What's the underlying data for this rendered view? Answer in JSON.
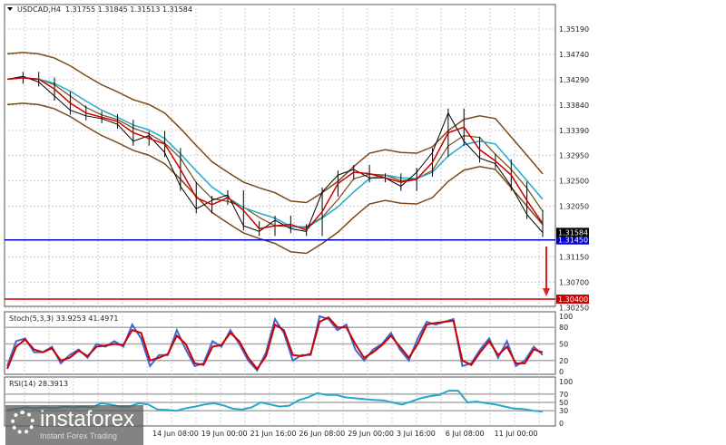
{
  "header": {
    "symbol": "USDCAD,H4",
    "ohlc": "1.31755 1.31845 1.31513 1.31584"
  },
  "chart_data": [
    {
      "type": "line",
      "name": "price",
      "title": "USDCAD,H4",
      "y_ticks": [
        "1.35190",
        "1.34740",
        "1.34290",
        "1.33840",
        "1.33390",
        "1.32950",
        "1.32500",
        "1.32050",
        "1.31150",
        "1.30700",
        "1.30250"
      ],
      "ylim": [
        1.3025,
        1.3545
      ],
      "x_ticks": [
        "14 Jun 08:00",
        "19 Jun 00:00",
        "21 Jun 16:00",
        "26 Jun 08:00",
        "29 Jun 00:00",
        "3 Jul 16:00",
        "6 Jul 08:00",
        "11 Jul 00:00"
      ],
      "close": [
        1.343,
        1.3435,
        1.3425,
        1.34,
        1.3375,
        1.3365,
        1.336,
        1.335,
        1.332,
        1.333,
        1.33,
        1.324,
        1.32,
        1.3215,
        1.3225,
        1.317,
        1.316,
        1.318,
        1.3165,
        1.316,
        1.323,
        1.326,
        1.327,
        1.3255,
        1.3255,
        1.324,
        1.3265,
        1.33,
        1.337,
        1.332,
        1.329,
        1.328,
        1.324,
        1.319,
        1.3158
      ],
      "current_price": {
        "label": "1.31584",
        "value": 1.31584,
        "color": "#000000"
      },
      "levels": [
        {
          "label": "1.31450",
          "value": 1.3145,
          "color": "#0000cc"
        },
        {
          "label": "1.30400",
          "value": 1.304,
          "color": "#cc0000"
        }
      ],
      "colors": {
        "price": "#000000",
        "fast_ma": "#cc0000",
        "slow_ma": "#22aacc",
        "bands": "#7a4a1a",
        "arrow": "#e02020"
      }
    },
    {
      "type": "line",
      "name": "stochastic",
      "title": "Stoch(5,3,3) 33.9253 41.4971",
      "y_ticks": [
        "100",
        "80",
        "50",
        "20",
        "0"
      ],
      "ylim": [
        0,
        100
      ],
      "main": [
        10,
        55,
        60,
        35,
        35,
        45,
        15,
        30,
        40,
        25,
        50,
        45,
        55,
        45,
        85,
        60,
        10,
        30,
        30,
        75,
        40,
        10,
        15,
        55,
        45,
        75,
        50,
        20,
        2,
        35,
        95,
        70,
        20,
        30,
        30,
        100,
        95,
        75,
        85,
        40,
        20,
        40,
        50,
        70,
        40,
        20,
        60,
        90,
        85,
        90,
        95,
        10,
        15,
        40,
        60,
        25,
        55,
        10,
        20,
        45,
        30
      ],
      "signal": [
        5,
        45,
        58,
        40,
        35,
        42,
        20,
        25,
        38,
        28,
        45,
        47,
        50,
        48,
        75,
        70,
        20,
        25,
        32,
        65,
        50,
        15,
        12,
        45,
        48,
        70,
        55,
        25,
        5,
        28,
        85,
        75,
        30,
        28,
        32,
        90,
        98,
        80,
        80,
        50,
        25,
        35,
        48,
        65,
        45,
        25,
        50,
        85,
        88,
        90,
        92,
        20,
        12,
        35,
        55,
        30,
        45,
        15,
        15,
        40,
        35
      ],
      "colors": {
        "main": "#4466cc",
        "signal": "#cc0000"
      }
    },
    {
      "type": "line",
      "name": "rsi",
      "title": "RSI(14) 28.3913",
      "y_ticks": [
        "100",
        "70",
        "50",
        "30",
        "0"
      ],
      "ylim": [
        0,
        100
      ],
      "values": [
        32,
        35,
        38,
        36,
        38,
        36,
        40,
        38,
        40,
        38,
        48,
        45,
        40,
        40,
        48,
        45,
        33,
        32,
        30,
        36,
        40,
        45,
        48,
        43,
        35,
        33,
        38,
        50,
        45,
        40,
        42,
        55,
        62,
        72,
        68,
        68,
        62,
        60,
        58,
        56,
        55,
        50,
        45,
        52,
        60,
        65,
        68,
        78,
        78,
        50,
        52,
        48,
        45,
        40,
        35,
        34,
        30,
        28
      ],
      "colors": {
        "line": "#22aacc"
      }
    }
  ],
  "logo": {
    "name": "instaforex",
    "tagline": "Instant Forex Trading"
  }
}
